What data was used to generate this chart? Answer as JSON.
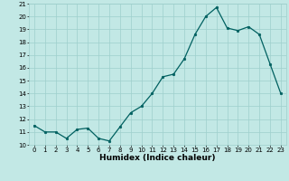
{
  "x": [
    0,
    1,
    2,
    3,
    4,
    5,
    6,
    7,
    8,
    9,
    10,
    11,
    12,
    13,
    14,
    15,
    16,
    17,
    18,
    19,
    20,
    21,
    22,
    23
  ],
  "y": [
    11.5,
    11.0,
    11.0,
    10.5,
    11.2,
    11.3,
    10.5,
    10.3,
    11.4,
    12.5,
    13.0,
    14.0,
    15.3,
    15.5,
    16.7,
    18.6,
    20.0,
    20.7,
    19.1,
    18.9,
    19.2,
    18.6,
    16.3,
    14.0
  ],
  "line_color": "#006060",
  "marker": "o",
  "marker_size": 1.8,
  "bg_color": "#c2e8e5",
  "grid_color": "#9ecfcc",
  "xlabel": "Humidex (Indice chaleur)",
  "ylim": [
    10,
    21
  ],
  "xlim": [
    -0.5,
    23.5
  ],
  "yticks": [
    10,
    11,
    12,
    13,
    14,
    15,
    16,
    17,
    18,
    19,
    20,
    21
  ],
  "xticks": [
    0,
    1,
    2,
    3,
    4,
    5,
    6,
    7,
    8,
    9,
    10,
    11,
    12,
    13,
    14,
    15,
    16,
    17,
    18,
    19,
    20,
    21,
    22,
    23
  ],
  "tick_fontsize": 5.0,
  "xlabel_fontsize": 6.5,
  "line_width": 0.9
}
